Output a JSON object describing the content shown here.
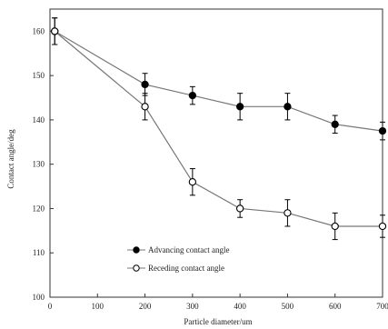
{
  "chart_data": {
    "type": "line",
    "xlabel": "Particle diameter/um",
    "ylabel": "Contact angle/deg",
    "xlim": [
      0,
      700
    ],
    "ylim": [
      100,
      165
    ],
    "xticks": [
      0,
      100,
      200,
      300,
      400,
      500,
      600,
      700
    ],
    "yticks": [
      100,
      110,
      120,
      130,
      140,
      150,
      160
    ],
    "grid": false,
    "legend_position": "bottom-left",
    "error_bars": true,
    "series": [
      {
        "name": "Advancing contact angle",
        "marker": "filled-circle",
        "color": "#000000",
        "x": [
          10,
          200,
          300,
          400,
          500,
          600,
          700
        ],
        "y": [
          160,
          148,
          145.5,
          143,
          143,
          139,
          137.5
        ],
        "err": [
          3,
          2.5,
          2,
          3,
          3,
          2,
          2
        ]
      },
      {
        "name": "Receding contact angle",
        "marker": "open-circle",
        "color": "#000000",
        "x": [
          10,
          200,
          300,
          400,
          500,
          600,
          700
        ],
        "y": [
          160,
          143,
          126,
          120,
          119,
          116,
          116
        ],
        "err": [
          3,
          3,
          3,
          2,
          3,
          3,
          2.5
        ]
      }
    ]
  }
}
